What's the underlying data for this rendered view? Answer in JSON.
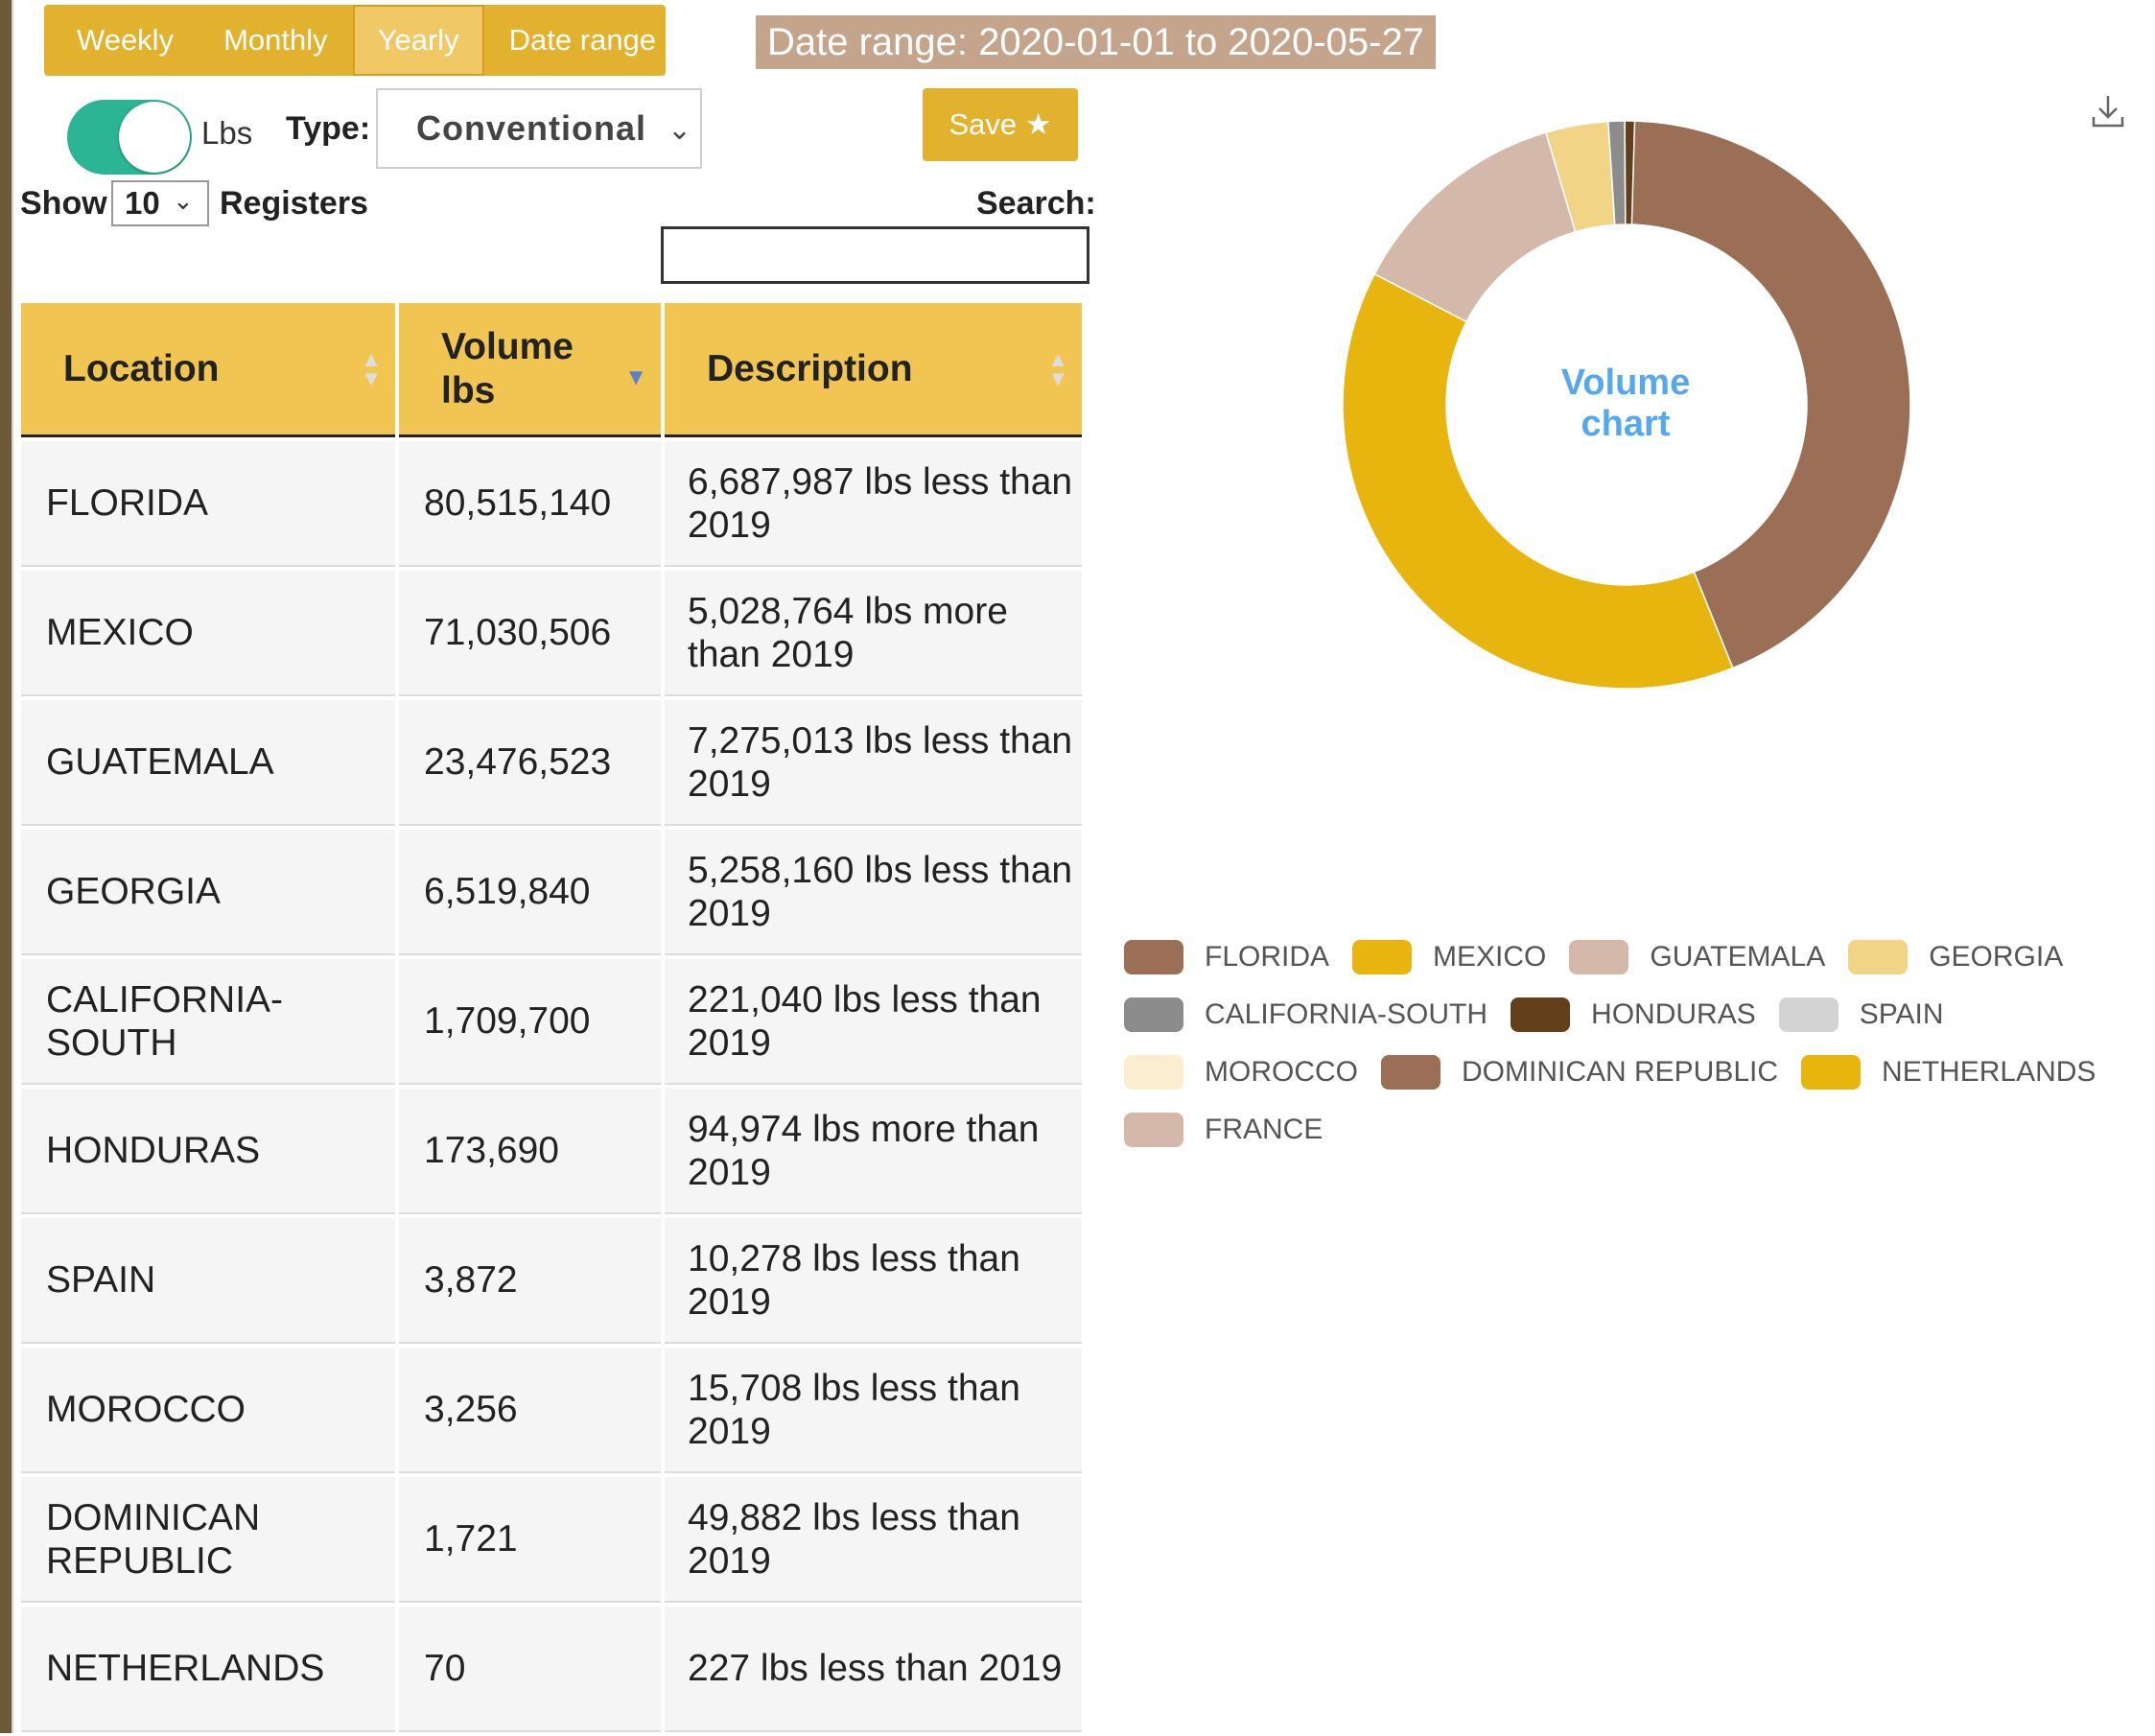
{
  "period_tabs": [
    "Weekly",
    "Monthly",
    "Yearly",
    "Date range"
  ],
  "active_period": "Yearly",
  "date_range_label": "Date range: 2020-01-01 to 2020-05-27",
  "unit_toggle": {
    "label": "Lbs",
    "on": true
  },
  "type_filter": {
    "label": "Type:",
    "value": "Conventional"
  },
  "save_button": "Save ★",
  "show": {
    "prefix": "Show",
    "value": "10",
    "suffix": "Registers"
  },
  "search": {
    "label": "Search:",
    "value": ""
  },
  "table": {
    "headers": [
      "Location",
      "Volume lbs",
      "Description"
    ],
    "rows": [
      {
        "location": "FLORIDA",
        "volume": "80,515,140",
        "description": "6,687,987 lbs less than 2019"
      },
      {
        "location": "MEXICO",
        "volume": "71,030,506",
        "description": "5,028,764 lbs more than 2019"
      },
      {
        "location": "GUATEMALA",
        "volume": "23,476,523",
        "description": "7,275,013 lbs less than 2019"
      },
      {
        "location": "GEORGIA",
        "volume": "6,519,840",
        "description": "5,258,160 lbs less than 2019"
      },
      {
        "location": "CALIFORNIA-SOUTH",
        "volume": "1,709,700",
        "description": "221,040 lbs less than 2019"
      },
      {
        "location": "HONDURAS",
        "volume": "173,690",
        "description": "94,974 lbs more than 2019"
      },
      {
        "location": "SPAIN",
        "volume": "3,872",
        "description": "10,278 lbs less than 2019"
      },
      {
        "location": "MOROCCO",
        "volume": "3,256",
        "description": "15,708 lbs less than 2019"
      },
      {
        "location": "DOMINICAN REPUBLIC",
        "volume": "1,721",
        "description": "49,882 lbs less than 2019"
      },
      {
        "location": "NETHERLANDS",
        "volume": "70",
        "description": "227 lbs less than 2019"
      }
    ]
  },
  "chart_data": {
    "type": "pie",
    "title": "Volume chart",
    "categories": [
      "FLORIDA",
      "MEXICO",
      "GUATEMALA",
      "GEORGIA",
      "CALIFORNIA-SOUTH",
      "HONDURAS",
      "SPAIN",
      "MOROCCO",
      "DOMINICAN REPUBLIC",
      "NETHERLANDS",
      "FRANCE"
    ],
    "values": [
      80515140,
      71030506,
      23476523,
      6519840,
      1709700,
      173690,
      3872,
      3256,
      1721,
      70,
      0
    ],
    "colors": [
      "#9a6f56",
      "#e8b50f",
      "#d4b9aa",
      "#f2d486",
      "#8c8c8c",
      "#643f1c",
      "#d3d3d3",
      "#fbedcf",
      "#9a6f56",
      "#e8b50f",
      "#d4b9aa"
    ],
    "legend": "bottom"
  }
}
